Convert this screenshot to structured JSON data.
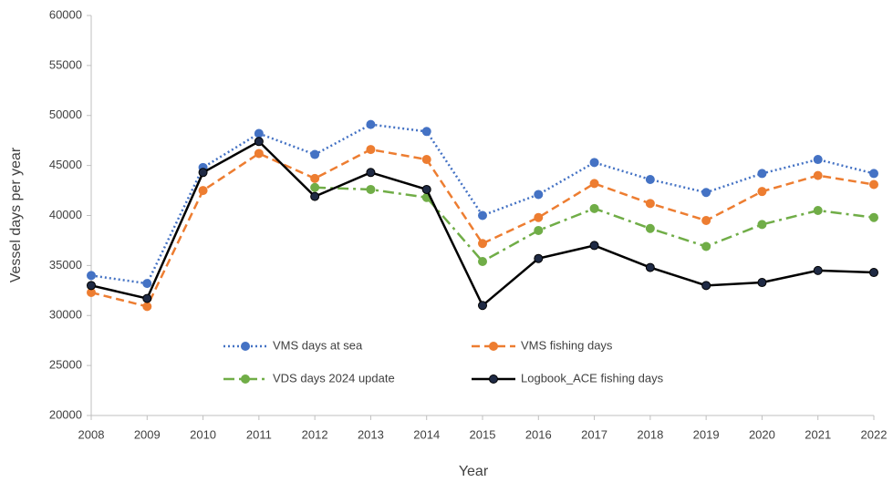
{
  "chart_data": {
    "type": "line",
    "x_label": "Year",
    "y_label": "Vessel days per year",
    "x": [
      2008,
      2009,
      2010,
      2011,
      2012,
      2013,
      2014,
      2015,
      2016,
      2017,
      2018,
      2019,
      2020,
      2021,
      2022
    ],
    "xlim": [
      2008,
      2022
    ],
    "xticks": [
      2008,
      2009,
      2010,
      2011,
      2012,
      2013,
      2014,
      2015,
      2016,
      2017,
      2018,
      2019,
      2020,
      2021,
      2022
    ],
    "ylim": [
      20000,
      60000
    ],
    "yticks": [
      20000,
      25000,
      30000,
      35000,
      40000,
      45000,
      50000,
      55000,
      60000
    ],
    "grid": false,
    "series": [
      {
        "name": "VMS days at sea",
        "color": "#4472c4",
        "style": "dotted",
        "values": [
          34000,
          33200,
          44800,
          48200,
          46100,
          49100,
          48400,
          40000,
          42100,
          45300,
          43600,
          42300,
          44200,
          45600,
          44200
        ]
      },
      {
        "name": "VMS fishing days",
        "color": "#ed7d31",
        "style": "dashed",
        "values": [
          32300,
          30900,
          42500,
          46200,
          43700,
          46600,
          45600,
          37200,
          39800,
          43200,
          41200,
          39500,
          42400,
          44000,
          43100
        ]
      },
      {
        "name": "VDS days 2024 update",
        "color": "#70ad47",
        "style": "dashdot",
        "values": [
          null,
          null,
          null,
          null,
          42800,
          42600,
          41800,
          35400,
          38500,
          40700,
          38700,
          36900,
          39100,
          40500,
          39800
        ]
      },
      {
        "name": "Logbook_ACE fishing days",
        "color": "#000000",
        "style": "solid",
        "values": [
          33000,
          31700,
          44300,
          47400,
          41900,
          44300,
          42600,
          31000,
          35700,
          37000,
          34800,
          33000,
          33300,
          34500,
          34300
        ]
      }
    ]
  }
}
